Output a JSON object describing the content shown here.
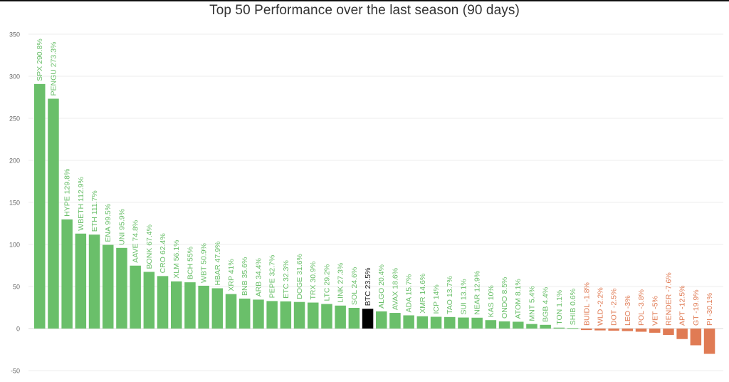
{
  "chart_data": {
    "type": "bar",
    "title": "Top 50 Performance over the last season (90 days)",
    "xlabel": "",
    "ylabel": "",
    "ylim": [
      -50,
      350
    ],
    "yticks": [
      -50,
      0,
      50,
      100,
      150,
      200,
      250,
      300,
      350
    ],
    "grid": true,
    "legend": "none",
    "colors": {
      "positive": "#6abf6a",
      "negative": "#e07b54",
      "highlight": "#000000",
      "highlight_label": "#222222"
    },
    "highlight_category": "BTC",
    "categories": [
      "SPX",
      "PENGU",
      "HYPE",
      "WBETH",
      "ETH",
      "ENA",
      "UNI",
      "AAVE",
      "BONK",
      "CRO",
      "XLM",
      "BCH",
      "WBT",
      "HBAR",
      "XRP",
      "BNB",
      "ARB",
      "PEPE",
      "ETC",
      "DOGE",
      "TRX",
      "LTC",
      "LINK",
      "SOL",
      "BTC",
      "ALGO",
      "AVAX",
      "ADA",
      "XMR",
      "ICP",
      "TAO",
      "SUI",
      "NEAR",
      "KAS",
      "ONDO",
      "ATOM",
      "MNT",
      "BGB",
      "TON",
      "SHIB",
      "BUIDL",
      "WLD",
      "DOT",
      "LEO",
      "POL",
      "VET",
      "RENDER",
      "APT",
      "GT",
      "PI"
    ],
    "values": [
      290.8,
      273.3,
      129.8,
      112.9,
      111.7,
      99.5,
      95.9,
      74.8,
      67.4,
      62.4,
      56.1,
      55,
      50.9,
      47.9,
      41,
      35.6,
      34.4,
      32.7,
      32.3,
      31.6,
      30.9,
      29.2,
      27.3,
      24.6,
      23.5,
      20.4,
      18.6,
      15.7,
      14.6,
      14,
      13.7,
      13.1,
      12.9,
      10,
      8.5,
      8.1,
      5.4,
      4.4,
      1.1,
      0.6,
      -1.8,
      -2.2,
      -2.5,
      -3,
      -3.8,
      -5,
      -7.6,
      -12.5,
      -19.9,
      -30.1
    ],
    "labels": [
      "SPX 290.8%",
      "PENGU 273.3%",
      "HYPE 129.8%",
      "WBETH 112.9%",
      "ETH 111.7%",
      "ENA 99.5%",
      "UNI 95.9%",
      "AAVE 74.8%",
      "BONK 67.4%",
      "CRO 62.4%",
      "XLM 56.1%",
      "BCH 55%",
      "WBT 50.9%",
      "HBAR 47.9%",
      "XRP 41%",
      "BNB 35.6%",
      "ARB 34.4%",
      "PEPE 32.7%",
      "ETC 32.3%",
      "DOGE 31.6%",
      "TRX 30.9%",
      "LTC 29.2%",
      "LINK 27.3%",
      "SOL 24.6%",
      "BTC 23.5%",
      "ALGO 20.4%",
      "AVAX 18.6%",
      "ADA 15.7%",
      "XMR 14.6%",
      "ICP 14%",
      "TAO 13.7%",
      "SUI 13.1%",
      "NEAR 12.9%",
      "KAS 10%",
      "ONDO 8.5%",
      "ATOM 8.1%",
      "MNT 5.4%",
      "BGB 4.4%",
      "TON 1.1%",
      "SHIB 0.6%",
      "BUIDL -1.8%",
      "WLD -2.2%",
      "DOT -2.5%",
      "LEO -3%",
      "POL -3.8%",
      "VET -5%",
      "RENDER -7.6%",
      "APT -12.5%",
      "GT -19.9%",
      "PI -30.1%"
    ]
  }
}
